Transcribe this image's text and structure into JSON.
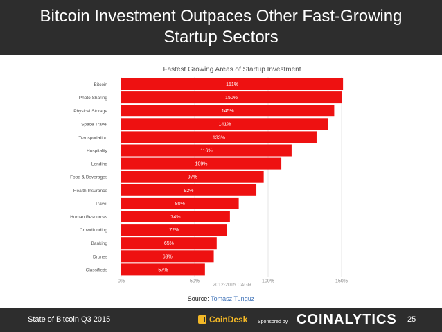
{
  "slide": {
    "title": "Bitcoin Investment Outpaces Other Fast-Growing Startup Sectors",
    "footer_left": "State of Bitcoin Q3 2015",
    "footer_logo": "CoinDesk",
    "sponsored_by": "Sponsored by",
    "sponsor": "COINALYTICS",
    "page_number": "25",
    "source_label": "Source:",
    "source_name": "Tomasz Tunguz"
  },
  "colors": {
    "bar": "#ee1111",
    "header_bg": "#2d2d2d",
    "logo_accent": "#f3b827"
  },
  "chart_data": {
    "type": "bar",
    "orientation": "horizontal",
    "title": "Fastest Growing Areas of Startup Investment",
    "xlabel": "2012-2015 CAGR",
    "ylabel": "",
    "xlim": [
      0,
      150
    ],
    "xticks": [
      "0%",
      "50%",
      "100%",
      "150%"
    ],
    "xtick_values": [
      0,
      50,
      100,
      150
    ],
    "categories": [
      "Bitcoin",
      "Photo Sharing",
      "Physical Storage",
      "Space Travel",
      "Transportation",
      "Hospitality",
      "Lending",
      "Food & Beverages",
      "Health Insurance",
      "Travel",
      "Human Resources",
      "Crowdfunding",
      "Banking",
      "Drones",
      "Classifieds"
    ],
    "values": [
      151,
      150,
      145,
      141,
      133,
      116,
      109,
      97,
      92,
      80,
      74,
      72,
      65,
      63,
      57
    ],
    "labels": [
      "151%",
      "150%",
      "145%",
      "141%",
      "133%",
      "116%",
      "109%",
      "97%",
      "92%",
      "80%",
      "74%",
      "72%",
      "65%",
      "63%",
      "57%"
    ],
    "grid": true,
    "legend": "none"
  }
}
